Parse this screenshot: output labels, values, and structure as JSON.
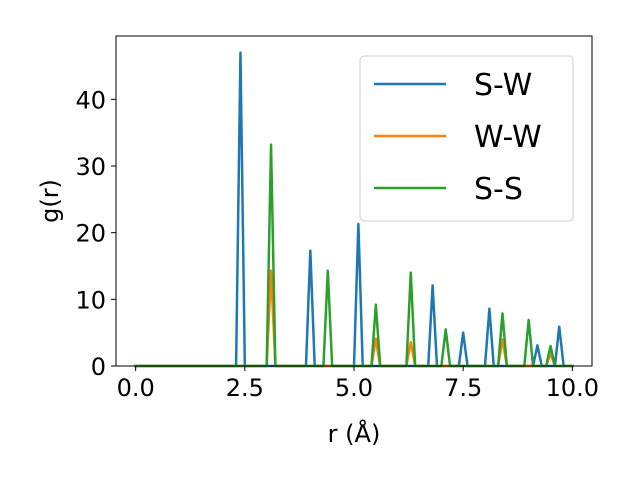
{
  "chart_data": {
    "type": "line",
    "title": "",
    "xlabel": "r (Å)",
    "ylabel": "g(r)",
    "xlim": [
      -0.45,
      10.45
    ],
    "ylim": [
      0,
      49.5
    ],
    "xticks": [
      0.0,
      2.5,
      5.0,
      7.5,
      10.0
    ],
    "xtick_labels": [
      "0.0",
      "2.5",
      "5.0",
      "7.5",
      "10.0"
    ],
    "yticks": [
      0,
      10,
      20,
      30,
      40
    ],
    "ytick_labels": [
      "0",
      "10",
      "20",
      "30",
      "40"
    ],
    "grid": false,
    "legend": {
      "position": "top-right"
    },
    "x_start": 0.0,
    "x_step": 0.1,
    "series": [
      {
        "name": "S-W",
        "color": "#1f77b4",
        "values": [
          0,
          0,
          0,
          0,
          0,
          0,
          0,
          0,
          0,
          0,
          0,
          0,
          0,
          0,
          0,
          0,
          0,
          0,
          0,
          0,
          0,
          0,
          0,
          0,
          47.0,
          0,
          0,
          0,
          0,
          0,
          0,
          0,
          0,
          0,
          0,
          0,
          0,
          0,
          0,
          0,
          17.3,
          0,
          0,
          0,
          0,
          0,
          0,
          0,
          0,
          0,
          0,
          21.3,
          0,
          0,
          0,
          0,
          0,
          0,
          0,
          0,
          0,
          0,
          0,
          0,
          0,
          0,
          0,
          0,
          12.1,
          0,
          0,
          0,
          0,
          0,
          0,
          5.0,
          0,
          0,
          0,
          0,
          0,
          8.6,
          0,
          0,
          0,
          0,
          0,
          0,
          0,
          0,
          0,
          0,
          3.1,
          0,
          0,
          0,
          0,
          5.9,
          0
        ]
      },
      {
        "name": "W-W",
        "color": "#ff7f0e",
        "values": [
          0,
          0,
          0,
          0,
          0,
          0,
          0,
          0,
          0,
          0,
          0,
          0,
          0,
          0,
          0,
          0,
          0,
          0,
          0,
          0,
          0,
          0,
          0,
          0,
          0,
          0,
          0,
          0,
          0,
          0,
          0,
          14.3,
          0,
          0,
          0,
          0,
          0,
          0,
          0,
          0,
          0,
          0,
          0,
          0,
          0,
          0,
          0,
          0,
          0,
          0,
          0,
          0,
          0,
          0,
          0,
          4.1,
          0,
          0,
          0,
          0,
          0,
          0,
          0,
          3.6,
          0,
          0,
          0,
          0,
          0,
          0,
          0,
          0,
          0,
          0,
          0,
          0,
          0,
          0,
          0,
          0,
          0,
          0,
          0,
          0,
          4.0,
          0,
          0,
          0,
          0,
          0,
          0,
          0,
          0,
          0,
          0,
          1.9,
          0,
          0,
          0,
          0,
          0
        ]
      },
      {
        "name": "S-S",
        "color": "#2ca02c",
        "values": [
          0,
          0,
          0,
          0,
          0,
          0,
          0,
          0,
          0,
          0,
          0,
          0,
          0,
          0,
          0,
          0,
          0,
          0,
          0,
          0,
          0,
          0,
          0,
          0,
          0,
          0,
          0,
          0,
          0,
          0,
          0,
          33.2,
          0,
          0,
          0,
          0,
          0,
          0,
          0,
          0,
          0,
          0,
          0,
          0,
          14.3,
          0,
          0,
          0,
          0,
          0,
          0,
          0,
          0,
          0,
          0,
          9.2,
          0,
          0,
          0,
          0,
          0,
          0,
          0,
          14.0,
          0,
          0,
          0,
          0,
          0,
          0,
          0,
          5.5,
          0,
          0,
          0,
          0,
          0,
          0,
          0,
          0,
          0,
          0,
          0,
          0,
          7.9,
          0,
          0,
          0,
          0,
          0,
          6.9,
          0,
          0,
          0,
          0,
          3.0,
          0,
          0,
          0,
          0,
          0
        ]
      }
    ]
  }
}
